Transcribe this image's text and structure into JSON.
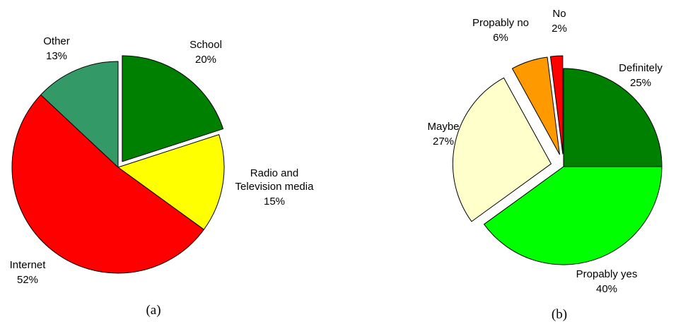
{
  "chart_data": [
    {
      "type": "pie",
      "caption": "(a)",
      "start_angle_deg": 0,
      "direction": "clockwise",
      "slices": [
        {
          "label": "School",
          "percent_label": "20%",
          "value": 20,
          "color": "#008000",
          "exploded": true
        },
        {
          "label": "Radio and\nTelevision media",
          "percent_label": "15%",
          "value": 15,
          "color": "#FFFF00",
          "exploded": false
        },
        {
          "label": "Internet",
          "percent_label": "52%",
          "value": 52,
          "color": "#FF0000",
          "exploded": false
        },
        {
          "label": "Other",
          "percent_label": "13%",
          "value": 13,
          "color": "#339966",
          "exploded": false
        }
      ]
    },
    {
      "type": "pie",
      "caption": "(b)",
      "start_angle_deg": 0,
      "direction": "clockwise",
      "slices": [
        {
          "label": "Definitely",
          "percent_label": "25%",
          "value": 25,
          "color": "#008000",
          "exploded": false
        },
        {
          "label": "Propably yes",
          "percent_label": "40%",
          "value": 40,
          "color": "#00FF00",
          "exploded": false
        },
        {
          "label": "Maybe",
          "percent_label": "27%",
          "value": 27,
          "color": "#FFFFCC",
          "exploded": true
        },
        {
          "label": "Propably no",
          "percent_label": "6%",
          "value": 6,
          "color": "#FF9900",
          "exploded": true
        },
        {
          "label": "No",
          "percent_label": "2%",
          "value": 2,
          "color": "#FF0000",
          "exploded": true
        }
      ]
    }
  ]
}
